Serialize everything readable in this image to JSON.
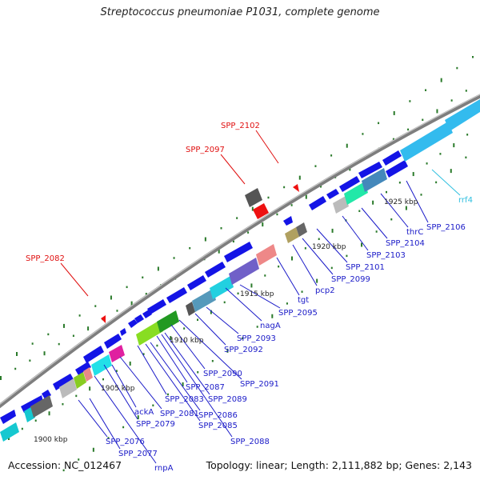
{
  "title": "Streptococcus pneumoniae P1031, complete genome",
  "footer": {
    "accession": "Accession: NC_012467",
    "summary": "Topology: linear; Length: 2,111,882 bp; Genes: 2,143"
  },
  "colors": {
    "gene": "#1010e0",
    "label_blue": "#1a1ac8",
    "label_red": "#e01010",
    "label_cyan": "#30c0e0",
    "backbone": "#888888",
    "tick": "#2a7a2a"
  },
  "scale_labels": [
    "1900 kbp",
    "1905 kbp",
    "1910 kbp",
    "1915 kbp",
    "1920 kbp",
    "1925 kbp"
  ],
  "gene_labels": [
    "SPP_2076",
    "SPP_2077",
    "rnpA",
    "SPP_2079",
    "ackA",
    "SPP_2081",
    "SPP_2083",
    "SPP_2085",
    "SPP_2086",
    "SPP_2087",
    "SPP_2088",
    "SPP_2089",
    "SPP_2090",
    "SPP_2091",
    "SPP_2092",
    "SPP_2093",
    "nagA",
    "SPP_2095",
    "tgt",
    "pcp2",
    "SPP_2099",
    "SPP_2101",
    "SPP_2103",
    "SPP_2104",
    "thrC",
    "SPP_2106",
    "rrf4"
  ],
  "special_labels": [
    "SPP_2082",
    "SPP_2097",
    "SPP_2102"
  ]
}
